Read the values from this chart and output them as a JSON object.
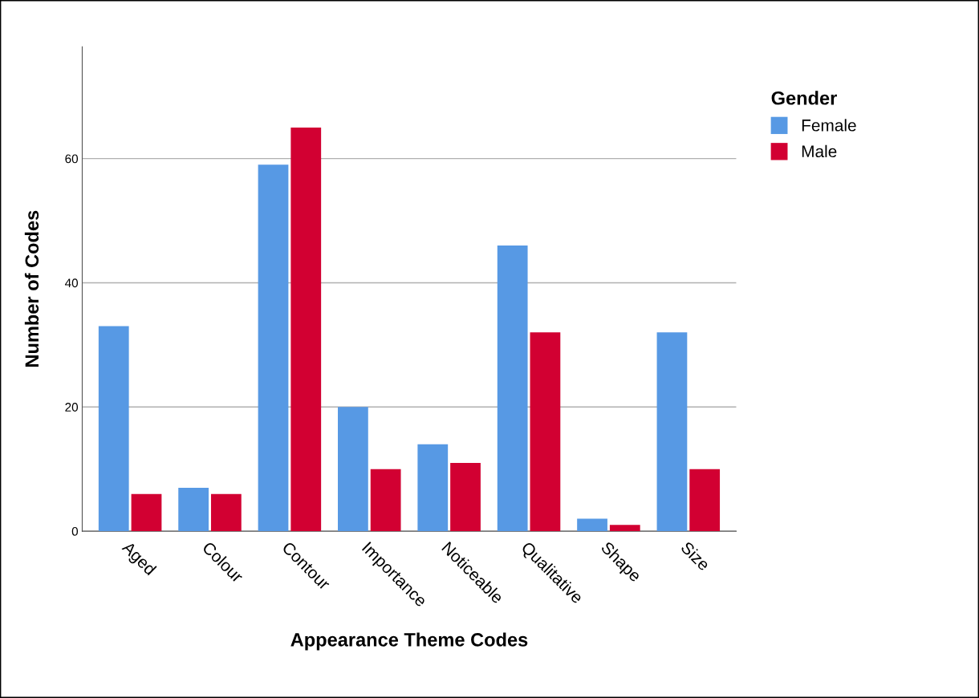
{
  "chart_data": {
    "type": "bar",
    "xlabel": "Appearance Theme Codes",
    "ylabel": "Number of Codes",
    "legend_title": "Gender",
    "categories": [
      "Aged",
      "Colour",
      "Contour",
      "Importance",
      "Noticeable",
      "Qualitative",
      "Shape",
      "Size"
    ],
    "series": [
      {
        "name": "Female",
        "color": "#5799e4",
        "values": [
          33,
          7,
          59,
          20,
          14,
          46,
          2,
          32
        ]
      },
      {
        "name": "Male",
        "color": "#d20032",
        "values": [
          6,
          6,
          65,
          10,
          11,
          32,
          1,
          10
        ]
      }
    ],
    "ylim": [
      0,
      78
    ],
    "yticks": [
      0,
      20,
      40,
      60
    ],
    "grid": "y",
    "legend": "right"
  }
}
